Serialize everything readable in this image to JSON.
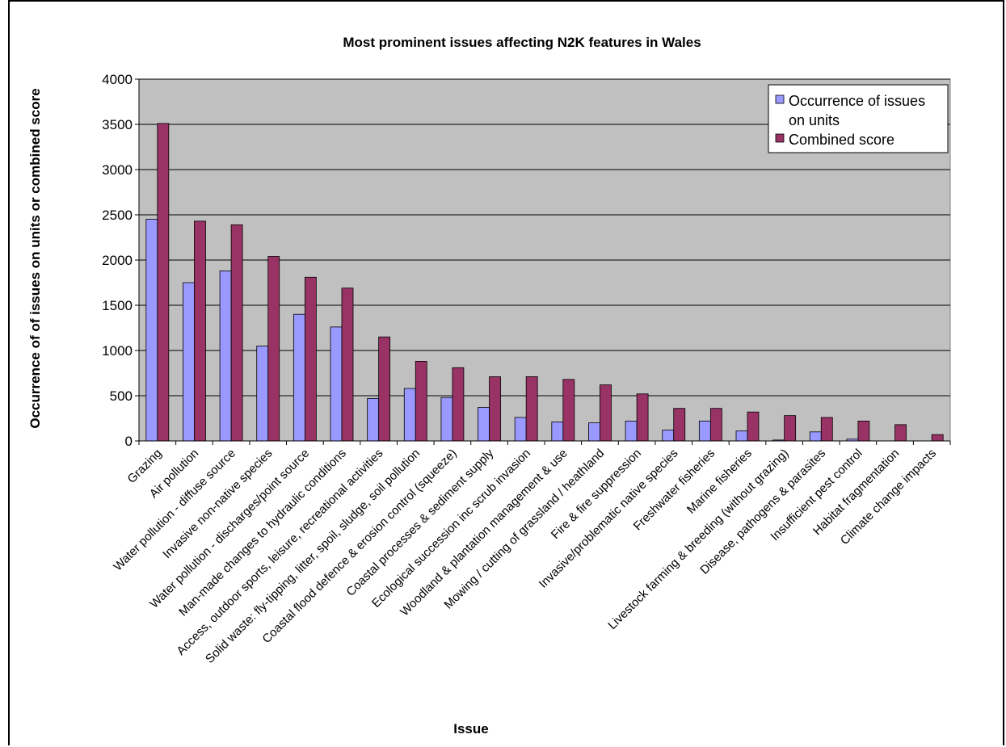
{
  "chart_data": {
    "type": "bar",
    "title": "Most prominent issues affecting N2K features in Wales",
    "xlabel": "Issue",
    "ylabel": "Occurrence of of issues on units or combined score",
    "ylim": [
      0,
      4000
    ],
    "yticks": [
      "0",
      "500",
      "1000",
      "1500",
      "2000",
      "2500",
      "3000",
      "3500",
      "4000"
    ],
    "grid": true,
    "legend_position": "top-right",
    "categories": [
      "Grazing",
      "Air pollution",
      "Water pollution - diffuse source",
      "Invasive non-native species",
      "Water pollution - discharges/point source",
      "Man-made changes to hydraulic conditions",
      "Access, outdoor sports, leisure, recreational activities",
      "Solid waste: fly-tipping, litter, spoil, sludge, soil pollution",
      "Coastal flood defence & erosion control (squeeze)",
      "Coastal processes & sediment supply",
      "Ecological succession inc scrub invasion",
      "Woodland & plantation management & use",
      "Mowing / cutting of grassland / heathland",
      "Fire & fire suppression",
      "Invasive/problematic native species",
      "Freshwater fisheries",
      "Marine fisheries",
      "Livestock farming & breeding (without grazing)",
      "Disease, pathogens & parasites",
      "Insufficient pest control",
      "Habitat fragmentation",
      "Climate change impacts"
    ],
    "series": [
      {
        "name": "Occurrence of issues on units",
        "color": "#9999ff",
        "values": [
          2450,
          1750,
          1880,
          1050,
          1400,
          1260,
          470,
          580,
          480,
          370,
          260,
          210,
          200,
          220,
          120,
          220,
          110,
          10,
          100,
          20,
          0,
          0
        ]
      },
      {
        "name": "Combined score",
        "color": "#993366",
        "values": [
          3510,
          2430,
          2390,
          2040,
          1810,
          1690,
          1150,
          880,
          810,
          710,
          710,
          680,
          620,
          520,
          360,
          360,
          320,
          280,
          260,
          220,
          180,
          70
        ]
      }
    ],
    "plot_background": "#c0c0c0"
  }
}
